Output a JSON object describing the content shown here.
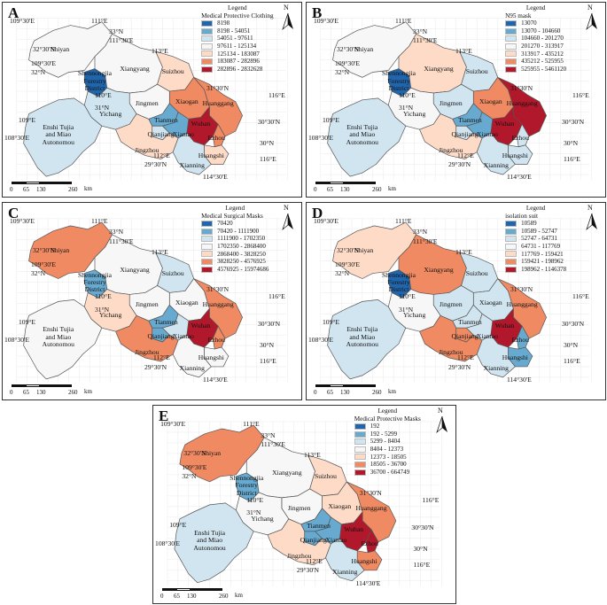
{
  "panels": [
    {
      "letter": "A",
      "legend_title": "Legend",
      "legend_subtitle": "Medical Protective Clothing",
      "legend_items": [
        "8198",
        "8198 - 54051",
        "54051 - 97611",
        "97611 - 125134",
        "125134 - 183087",
        "183087 - 282896",
        "282896 - 2832628"
      ]
    },
    {
      "letter": "B",
      "legend_title": "Legend",
      "legend_subtitle": "N95 mask",
      "legend_items": [
        "13070",
        "13070 - 104660",
        "104660 - 201270",
        "201270 - 313917",
        "313917 - 435212",
        "435212 - 525955",
        "525955 - 5461120"
      ]
    },
    {
      "letter": "C",
      "legend_title": "Legend",
      "legend_subtitle": "Medical Surgical Masks",
      "legend_items": [
        "70420",
        "70420 - 1111900",
        "1111900 - 1702350",
        "1702350 - 2868400",
        "2868400 - 3828250",
        "3828250 - 4576925",
        "4576925 - 15974686"
      ]
    },
    {
      "letter": "D",
      "legend_title": "Legend",
      "legend_subtitle": "isolation suit",
      "legend_items": [
        "10589",
        "10589 - 52747",
        "52747 - 64731",
        "64731 - 117769",
        "117769 - 159421",
        "159421 - 198962",
        "198962 - 1146378"
      ]
    },
    {
      "letter": "E",
      "legend_title": "Legend",
      "legend_subtitle": "Medical Protective Masks",
      "legend_items": [
        "192",
        "192 - 5299",
        "5299 - 8404",
        "8404 - 12373",
        "12373 - 18505",
        "18505 - 36700",
        "36700 - 664749"
      ]
    }
  ],
  "legend_colors": [
    "#2166ac",
    "#67a9cf",
    "#d1e5f0",
    "#f7f7f7",
    "#fddbc7",
    "#ef8a62",
    "#b2182b"
  ],
  "north_label": "N",
  "coords": {
    "c1": "109°30'E",
    "c2": "111°E",
    "c3": "33°N",
    "c4": "111°30'E",
    "c5": "113°E",
    "c6": "32°30'N",
    "c7": "109°30'E",
    "c8": "32°N",
    "c9": "110°E",
    "c10": "31°N",
    "c11": "31°30'N",
    "c12": "116°E",
    "c13": "109°E",
    "c14": "108°30'E",
    "c15": "30°30'N",
    "c16": "30°N",
    "c17": "112°E",
    "c18": "29°30'N",
    "c19": "116°E",
    "c20": "114°30'E"
  },
  "places": {
    "shiyan": "Shiyan",
    "shennongjia": "Shennongjia",
    "forestry": "Forestry",
    "district": "District",
    "xiangyang": "Xiangyang",
    "suizhou": "Suizhou",
    "xiaogan": "Xiaogan",
    "huanggang": "Huanggang",
    "jingmen": "Jingmen",
    "yichang": "Yichang",
    "tianmen": "Tianmen",
    "qianjiang": "Qianjiang",
    "xiantao": "Xiantao",
    "wuhan": "Wuhan",
    "ezhou": "Ezhou",
    "huangshi": "Huangshi",
    "jingzhou": "Jingzhou",
    "xianning": "Xianning",
    "enshi1": "Enshi Tujia",
    "enshi2": "and Miao",
    "enshi3": "Autonomou"
  },
  "scale": {
    "t0": "0",
    "t1": "65",
    "t2": "130",
    "t3": "260",
    "unit": "km"
  },
  "map_colors": {
    "A": {
      "shiyan": 3,
      "shennongjia": 0,
      "xiangyang": 3,
      "suizhou": 4,
      "xiaogan": 5,
      "huanggang": 5,
      "jingmen": 3,
      "yichang": 2,
      "tianmen": 1,
      "qianjiang": 2,
      "xiantao": 1,
      "wuhan": 6,
      "ezhou": 5,
      "huangshi": 4,
      "jingzhou": 4,
      "xianning": 2,
      "enshi": 2
    },
    "B": {
      "shiyan": 3,
      "shennongjia": 0,
      "xiangyang": 4,
      "suizhou": 2,
      "xiaogan": 5,
      "huanggang": 6,
      "jingmen": 2,
      "yichang": 3,
      "tianmen": 1,
      "qianjiang": 2,
      "xiantao": 1,
      "wuhan": 6,
      "ezhou": 2,
      "huangshi": 2,
      "jingzhou": 4,
      "xianning": 2,
      "enshi": 2
    },
    "C": {
      "shiyan": 5,
      "shennongjia": 1,
      "xiangyang": 3,
      "suizhou": 2,
      "xiaogan": 3,
      "huanggang": 5,
      "jingmen": 3,
      "yichang": 4,
      "tianmen": 1,
      "qianjiang": 1,
      "xiantao": 2,
      "wuhan": 6,
      "ezhou": 5,
      "huangshi": 3,
      "jingzhou": 5,
      "xianning": 3,
      "enshi": 3
    },
    "D": {
      "shiyan": 4,
      "shennongjia": 0,
      "xiangyang": 5,
      "suizhou": 2,
      "xiaogan": 2,
      "huanggang": 5,
      "jingmen": 2,
      "yichang": 3,
      "tianmen": 2,
      "qianjiang": 5,
      "xiantao": 2,
      "wuhan": 6,
      "ezhou": 1,
      "huangshi": 1,
      "jingzhou": 5,
      "xianning": 2,
      "enshi": 2
    },
    "E": {
      "shiyan": 5,
      "shennongjia": 1,
      "xiangyang": 3,
      "suizhou": 4,
      "xiaogan": 4,
      "huanggang": 5,
      "jingmen": 3,
      "yichang": 3,
      "tianmen": 1,
      "qianjiang": 1,
      "xiantao": 1,
      "wuhan": 6,
      "ezhou": 6,
      "huangshi": 5,
      "jingzhou": 4,
      "xianning": 2,
      "enshi": 2
    }
  }
}
